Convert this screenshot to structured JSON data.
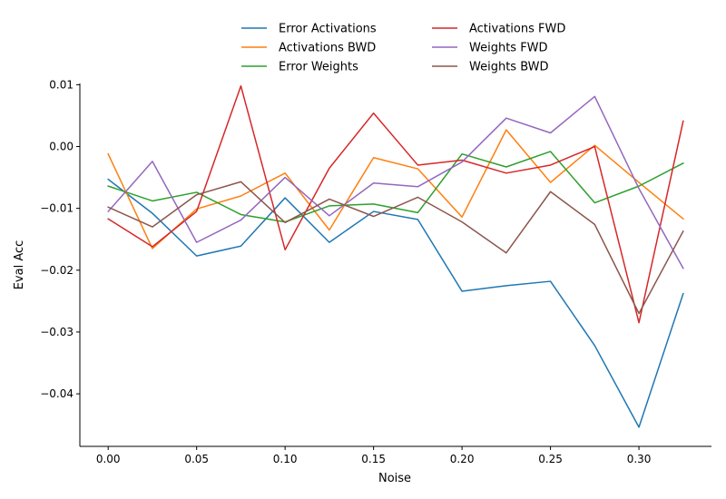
{
  "chart_data": {
    "type": "line",
    "xlabel": "Noise",
    "ylabel": "Eval Acc",
    "xlim": [
      -0.016,
      0.341
    ],
    "ylim": [
      -0.0485,
      0.0102
    ],
    "xticks": [
      0.0,
      0.05,
      0.1,
      0.15,
      0.2,
      0.25,
      0.3
    ],
    "xtick_labels": [
      "0.00",
      "0.05",
      "0.10",
      "0.15",
      "0.20",
      "0.25",
      "0.30"
    ],
    "yticks": [
      0.01,
      0.0,
      -0.01,
      -0.02,
      -0.03,
      -0.04
    ],
    "ytick_labels": [
      "0.01",
      "0.00",
      "−0.01",
      "−0.02",
      "−0.03",
      "−0.04"
    ],
    "grid": false,
    "legend_position": "top-center",
    "x": [
      0.0,
      0.025,
      0.05,
      0.075,
      0.1,
      0.125,
      0.15,
      0.175,
      0.2,
      0.225,
      0.25,
      0.275,
      0.3,
      0.325
    ],
    "series": [
      {
        "name": "Error Activations",
        "color": "#1f77b4",
        "values": [
          -0.0053,
          -0.0108,
          -0.0177,
          -0.0161,
          -0.0083,
          -0.0155,
          -0.0105,
          -0.0118,
          -0.0234,
          -0.0225,
          -0.0218,
          -0.0322,
          -0.0454,
          -0.0238
        ]
      },
      {
        "name": "Activations BWD",
        "color": "#ff7f0e",
        "values": [
          -0.0012,
          -0.0165,
          -0.0101,
          -0.008,
          -0.0043,
          -0.0135,
          -0.0018,
          -0.0036,
          -0.0114,
          0.0027,
          -0.0058,
          0.0002,
          -0.0058,
          -0.0117
        ]
      },
      {
        "name": "Error Weights",
        "color": "#2ca02c",
        "values": [
          -0.0064,
          -0.0088,
          -0.0074,
          -0.011,
          -0.0122,
          -0.0096,
          -0.0093,
          -0.0107,
          -0.0012,
          -0.0033,
          -0.0008,
          -0.0091,
          -0.0064,
          -0.0027
        ]
      },
      {
        "name": "Activations FWD",
        "color": "#d62728",
        "values": [
          -0.0117,
          -0.0162,
          -0.0105,
          0.0098,
          -0.0167,
          -0.0035,
          0.0054,
          -0.003,
          -0.0022,
          -0.0043,
          -0.003,
          0.0,
          -0.0285,
          0.0041
        ]
      },
      {
        "name": "Weights FWD",
        "color": "#9467bd",
        "values": [
          -0.0105,
          -0.0024,
          -0.0155,
          -0.0119,
          -0.005,
          -0.0112,
          -0.0059,
          -0.0065,
          -0.0025,
          0.0046,
          0.0022,
          0.0081,
          -0.0068,
          -0.0197
        ]
      },
      {
        "name": "Weights BWD",
        "color": "#8c564b",
        "values": [
          -0.0098,
          -0.013,
          -0.0078,
          -0.0057,
          -0.0123,
          -0.0085,
          -0.0113,
          -0.0082,
          -0.0122,
          -0.0172,
          -0.0073,
          -0.0126,
          -0.027,
          -0.0137
        ]
      }
    ]
  }
}
